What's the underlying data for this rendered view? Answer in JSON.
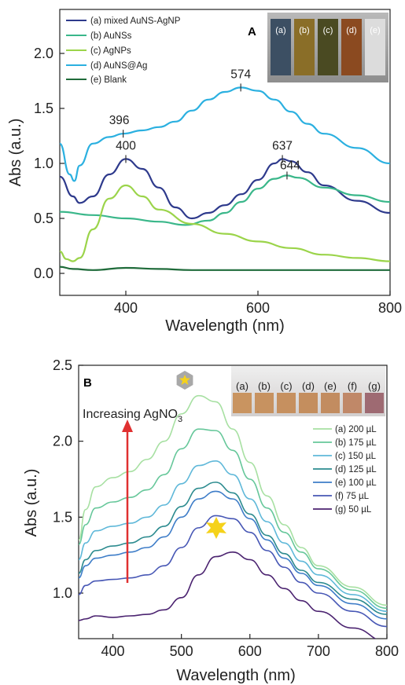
{
  "chart_data": [
    {
      "panel": "A",
      "type": "line",
      "xlabel": "Wavelength (nm)",
      "ylabel": "Abs (a.u.)",
      "xlim": [
        300,
        800
      ],
      "ylim": [
        -0.2,
        2.4
      ],
      "xticks": [
        400,
        600,
        800
      ],
      "yticks": [
        0.0,
        0.5,
        1.0,
        1.5,
        2.0
      ],
      "legend_position": "top-left",
      "series": [
        {
          "name": "(a) mixed AuNS-AgNP",
          "color": "#2e3a8c",
          "x": [
            300,
            320,
            330,
            350,
            375,
            400,
            425,
            450,
            475,
            500,
            525,
            550,
            575,
            600,
            625,
            637,
            650,
            675,
            700,
            750,
            800
          ],
          "y": [
            0.88,
            0.7,
            0.64,
            0.7,
            0.9,
            1.04,
            0.95,
            0.78,
            0.6,
            0.5,
            0.55,
            0.62,
            0.72,
            0.85,
            1.0,
            1.04,
            1.02,
            0.92,
            0.8,
            0.66,
            0.55
          ]
        },
        {
          "name": "(b) AuNSs",
          "color": "#3ab78a",
          "x": [
            300,
            350,
            400,
            450,
            490,
            525,
            550,
            575,
            600,
            625,
            644,
            660,
            700,
            750,
            800
          ],
          "y": [
            0.56,
            0.53,
            0.5,
            0.47,
            0.44,
            0.48,
            0.55,
            0.65,
            0.77,
            0.86,
            0.89,
            0.87,
            0.78,
            0.71,
            0.65
          ]
        },
        {
          "name": "(c) AgNPs",
          "color": "#9bd44a",
          "x": [
            300,
            310,
            320,
            330,
            350,
            375,
            400,
            425,
            450,
            500,
            550,
            600,
            650,
            700,
            750,
            800
          ],
          "y": [
            0.2,
            0.13,
            0.11,
            0.14,
            0.4,
            0.68,
            0.8,
            0.7,
            0.58,
            0.45,
            0.36,
            0.29,
            0.23,
            0.17,
            0.14,
            0.11
          ]
        },
        {
          "name": "(d) AuNS@Ag",
          "color": "#2bb0e0",
          "x": [
            300,
            315,
            322,
            330,
            350,
            375,
            396,
            425,
            450,
            475,
            500,
            525,
            550,
            574,
            600,
            625,
            650,
            675,
            700,
            750,
            800
          ],
          "y": [
            1.18,
            0.9,
            0.84,
            0.98,
            1.18,
            1.24,
            1.27,
            1.3,
            1.33,
            1.38,
            1.48,
            1.58,
            1.65,
            1.69,
            1.66,
            1.58,
            1.47,
            1.36,
            1.27,
            1.14,
            1.0
          ]
        },
        {
          "name": "(e) Blank",
          "color": "#1f6b3a",
          "x": [
            300,
            320,
            350,
            400,
            450,
            500,
            600,
            700,
            800
          ],
          "y": [
            0.06,
            0.04,
            0.03,
            0.05,
            0.04,
            0.03,
            0.03,
            0.03,
            0.03
          ]
        }
      ],
      "peak_labels": [
        {
          "text": "574",
          "x": 574,
          "y": 1.69,
          "series": "(d) AuNS@Ag"
        },
        {
          "text": "396",
          "x": 396,
          "y": 1.27,
          "series": "(d) AuNS@Ag"
        },
        {
          "text": "400",
          "x": 400,
          "y": 1.04,
          "series": "(a) mixed AuNS-AgNP"
        },
        {
          "text": "637",
          "x": 637,
          "y": 1.04,
          "series": "(a) mixed AuNS-AgNP"
        },
        {
          "text": "644",
          "x": 644,
          "y": 0.89,
          "series": "(b) AuNSs"
        }
      ],
      "inset_labels": [
        "(a)",
        "(b)",
        "(c)",
        "(d)",
        "(e)"
      ]
    },
    {
      "panel": "B",
      "type": "line",
      "xlabel": "Wavelength (nm)",
      "ylabel": "Abs (a.u.)",
      "xlim": [
        350,
        800
      ],
      "ylim": [
        0.7,
        2.5
      ],
      "xticks": [
        400,
        500,
        600,
        700,
        800
      ],
      "yticks": [
        1.0,
        1.5,
        2.0,
        2.5
      ],
      "legend_position": "right",
      "annotation": {
        "text": "Increasing AgNO",
        "sub": "3"
      },
      "series": [
        {
          "name": "(a) 200 µL",
          "color": "#a7e0a2",
          "x": [
            350,
            360,
            375,
            400,
            425,
            450,
            475,
            500,
            525,
            550,
            575,
            600,
            625,
            650,
            675,
            700,
            750,
            800
          ],
          "y": [
            1.35,
            1.55,
            1.7,
            1.76,
            1.8,
            1.88,
            2.0,
            2.18,
            2.3,
            2.26,
            2.08,
            1.86,
            1.64,
            1.45,
            1.3,
            1.18,
            1.04,
            0.92
          ]
        },
        {
          "name": "(b) 175 µL",
          "color": "#66c79a",
          "x": [
            350,
            360,
            375,
            400,
            425,
            450,
            475,
            500,
            525,
            550,
            575,
            600,
            625,
            650,
            675,
            700,
            750,
            800
          ],
          "y": [
            1.32,
            1.45,
            1.56,
            1.6,
            1.63,
            1.68,
            1.78,
            1.95,
            2.08,
            2.07,
            1.94,
            1.75,
            1.56,
            1.4,
            1.27,
            1.16,
            1.02,
            0.9
          ]
        },
        {
          "name": "(c) 150 µL",
          "color": "#5fb8d9",
          "x": [
            350,
            360,
            375,
            400,
            425,
            450,
            475,
            500,
            525,
            550,
            575,
            600,
            625,
            650,
            675,
            700,
            750,
            800
          ],
          "y": [
            1.22,
            1.33,
            1.41,
            1.44,
            1.46,
            1.5,
            1.58,
            1.72,
            1.84,
            1.87,
            1.78,
            1.62,
            1.47,
            1.33,
            1.21,
            1.12,
            0.99,
            0.88
          ]
        },
        {
          "name": "(d) 125 µL",
          "color": "#2c8b8f",
          "x": [
            350,
            360,
            375,
            400,
            425,
            450,
            475,
            500,
            525,
            550,
            575,
            600,
            625,
            650,
            675,
            700,
            750,
            800
          ],
          "y": [
            1.13,
            1.22,
            1.28,
            1.31,
            1.33,
            1.37,
            1.44,
            1.57,
            1.69,
            1.73,
            1.66,
            1.52,
            1.38,
            1.26,
            1.15,
            1.07,
            0.96,
            0.86
          ]
        },
        {
          "name": "(e) 100 µL",
          "color": "#3e7dc8",
          "x": [
            350,
            360,
            375,
            400,
            425,
            450,
            475,
            500,
            525,
            550,
            575,
            600,
            625,
            650,
            675,
            700,
            750,
            800
          ],
          "y": [
            1.1,
            1.18,
            1.23,
            1.25,
            1.27,
            1.3,
            1.37,
            1.5,
            1.62,
            1.67,
            1.62,
            1.49,
            1.35,
            1.23,
            1.13,
            1.05,
            0.93,
            0.83
          ]
        },
        {
          "name": "(f) 75 µL",
          "color": "#4757b5",
          "x": [
            350,
            360,
            375,
            400,
            425,
            450,
            475,
            500,
            525,
            550,
            575,
            600,
            625,
            650,
            675,
            700,
            750,
            800
          ],
          "y": [
            0.99,
            1.05,
            1.08,
            1.09,
            1.1,
            1.12,
            1.18,
            1.3,
            1.43,
            1.51,
            1.49,
            1.4,
            1.28,
            1.17,
            1.07,
            1.0,
            0.88,
            0.78
          ]
        },
        {
          "name": "(g) 50 µL",
          "color": "#4b2370",
          "x": [
            350,
            360,
            375,
            400,
            425,
            450,
            475,
            500,
            525,
            550,
            575,
            600,
            625,
            650,
            675,
            700,
            750,
            800
          ],
          "y": [
            0.82,
            0.83,
            0.85,
            0.84,
            0.85,
            0.86,
            0.89,
            0.97,
            1.12,
            1.24,
            1.27,
            1.22,
            1.12,
            1.03,
            0.95,
            0.88,
            0.77,
            0.68
          ]
        }
      ],
      "inset_labels": [
        "(a)",
        "(b)",
        "(c)",
        "(d)",
        "(e)",
        "(f)",
        "(g)"
      ],
      "colors": {
        "arrow": "#e03030",
        "star": "#f5d21a",
        "hexagon": "#a8a8a8"
      }
    }
  ]
}
